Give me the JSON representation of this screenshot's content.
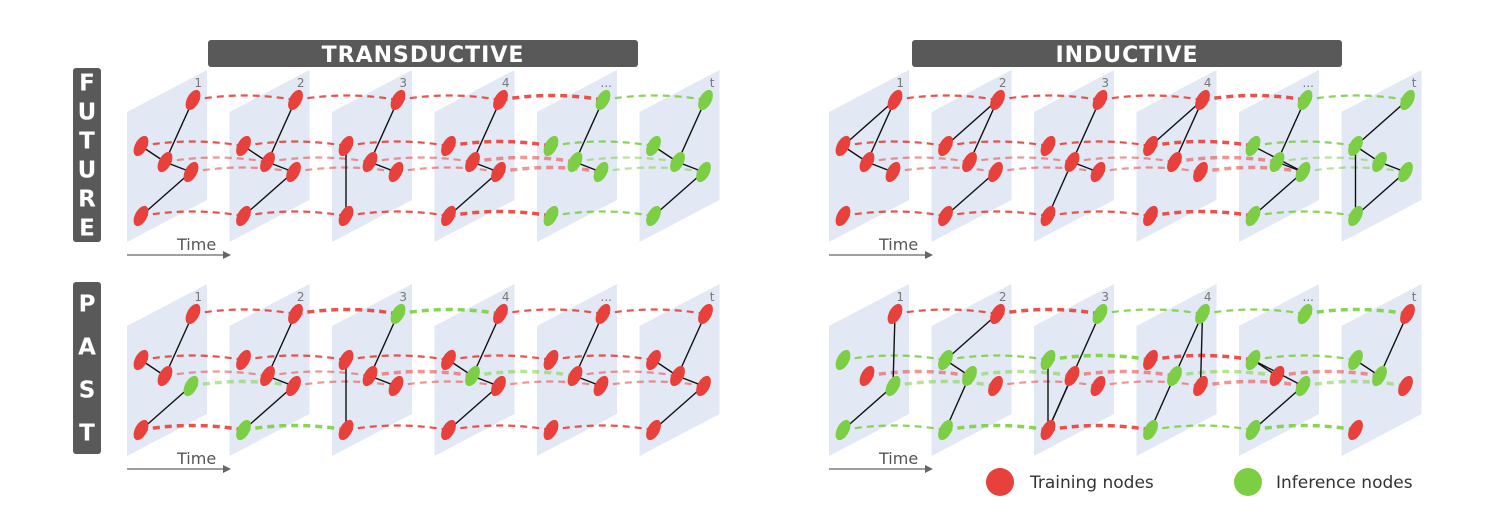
{
  "sections": [
    {
      "id": "transductive",
      "title": "TRANSDUCTIVE"
    },
    {
      "id": "inductive",
      "title": "INDUCTIVE"
    }
  ],
  "rows": [
    {
      "id": "future",
      "label": "FUTURE"
    },
    {
      "id": "past",
      "label": "PAST"
    }
  ],
  "frame_labels": [
    "1",
    "2",
    "3",
    "4",
    "...",
    "t"
  ],
  "time_label": "Time",
  "legend": {
    "training": {
      "label": "Training nodes",
      "color": "#e8403a"
    },
    "inference": {
      "label": "Inference nodes",
      "color": "#7ccf44"
    }
  },
  "colors": {
    "banner": "#595959",
    "plane": "#dfe6f3",
    "edge": "#111111",
    "axis": "#666666"
  },
  "panels": [
    {
      "section": "transductive",
      "row": "future",
      "frames": [
        {
          "nodes": [
            "r",
            "r",
            "r",
            "r",
            "r"
          ],
          "edges": [
            [
              0,
              2
            ],
            [
              1,
              2
            ],
            [
              2,
              3
            ],
            [
              3,
              4
            ]
          ]
        },
        {
          "nodes": [
            "r",
            "r",
            "r",
            "r",
            "r"
          ],
          "edges": [
            [
              0,
              2
            ],
            [
              2,
              3
            ],
            [
              3,
              4
            ],
            [
              1,
              2
            ]
          ]
        },
        {
          "nodes": [
            "r",
            "r",
            "r",
            "r",
            "r"
          ],
          "edges": [
            [
              0,
              2
            ],
            [
              1,
              4
            ],
            [
              2,
              3
            ]
          ]
        },
        {
          "nodes": [
            "r",
            "r",
            "r",
            "r",
            "r"
          ],
          "edges": [
            [
              0,
              2
            ],
            [
              2,
              3
            ],
            [
              3,
              4
            ]
          ]
        },
        {
          "nodes": [
            "g",
            "g",
            "g",
            "g",
            "g"
          ],
          "edges": [
            [
              0,
              2
            ],
            [
              2,
              3
            ]
          ]
        },
        {
          "nodes": [
            "g",
            "g",
            "g",
            "g",
            "g"
          ],
          "edges": [
            [
              0,
              2
            ],
            [
              2,
              3
            ],
            [
              3,
              4
            ],
            [
              1,
              2
            ]
          ]
        }
      ]
    },
    {
      "section": "transductive",
      "row": "past",
      "frames": [
        {
          "nodes": [
            "r",
            "r",
            "r",
            "g",
            "r"
          ],
          "edges": [
            [
              0,
              2
            ],
            [
              1,
              2
            ],
            [
              3,
              4
            ]
          ]
        },
        {
          "nodes": [
            "r",
            "r",
            "r",
            "r",
            "g"
          ],
          "edges": [
            [
              0,
              2
            ],
            [
              2,
              3
            ],
            [
              3,
              4
            ]
          ]
        },
        {
          "nodes": [
            "g",
            "r",
            "r",
            "r",
            "r"
          ],
          "edges": [
            [
              0,
              2
            ],
            [
              1,
              4
            ],
            [
              2,
              3
            ]
          ]
        },
        {
          "nodes": [
            "r",
            "r",
            "g",
            "r",
            "r"
          ],
          "edges": [
            [
              0,
              2
            ],
            [
              2,
              3
            ],
            [
              3,
              4
            ],
            [
              1,
              2
            ]
          ]
        },
        {
          "nodes": [
            "r",
            "r",
            "r",
            "r",
            "r"
          ],
          "edges": [
            [
              0,
              2
            ],
            [
              2,
              3
            ]
          ]
        },
        {
          "nodes": [
            "r",
            "r",
            "r",
            "r",
            "r"
          ],
          "edges": [
            [
              0,
              2
            ],
            [
              1,
              2
            ],
            [
              2,
              3
            ],
            [
              3,
              4
            ]
          ]
        }
      ]
    },
    {
      "section": "inductive",
      "row": "future",
      "frames": [
        {
          "nodes": [
            "r",
            "r",
            "r",
            "r",
            "r"
          ],
          "edges": [
            [
              0,
              1
            ],
            [
              0,
              2
            ],
            [
              1,
              2
            ],
            [
              2,
              3
            ]
          ]
        },
        {
          "nodes": [
            "r",
            "r",
            "r",
            "r",
            "r"
          ],
          "edges": [
            [
              0,
              1
            ],
            [
              0,
              2
            ],
            [
              3,
              4
            ]
          ]
        },
        {
          "nodes": [
            "r",
            "r",
            "r",
            "r",
            "r"
          ],
          "edges": [
            [
              0,
              2
            ],
            [
              2,
              4
            ],
            [
              2,
              3
            ]
          ]
        },
        {
          "nodes": [
            "r",
            "r",
            "r",
            "r",
            "r"
          ],
          "edges": [
            [
              0,
              1
            ],
            [
              0,
              2
            ]
          ]
        },
        {
          "nodes": [
            "g",
            "g",
            "g",
            "g",
            "g"
          ],
          "edges": [
            [
              0,
              2
            ],
            [
              1,
              3
            ],
            [
              2,
              3
            ],
            [
              3,
              4
            ]
          ]
        },
        {
          "nodes": [
            "g",
            "g",
            "g",
            "g",
            "g"
          ],
          "edges": [
            [
              0,
              1
            ],
            [
              1,
              2
            ],
            [
              1,
              4
            ],
            [
              2,
              3
            ],
            [
              3,
              4
            ]
          ]
        }
      ]
    },
    {
      "section": "inductive",
      "row": "past",
      "frames": [
        {
          "nodes": [
            "r",
            "g",
            "r",
            "g",
            "g"
          ],
          "edges": [
            [
              0,
              3
            ],
            [
              3,
              4
            ]
          ]
        },
        {
          "nodes": [
            "r",
            "g",
            "g",
            "r",
            "g"
          ],
          "edges": [
            [
              0,
              1
            ],
            [
              1,
              2
            ],
            [
              2,
              4
            ]
          ]
        },
        {
          "nodes": [
            "g",
            "g",
            "r",
            "r",
            "r"
          ],
          "edges": [
            [
              0,
              4
            ],
            [
              1,
              4
            ],
            [
              2,
              4
            ]
          ]
        },
        {
          "nodes": [
            "g",
            "r",
            "g",
            "r",
            "g"
          ],
          "edges": [
            [
              0,
              2
            ],
            [
              0,
              3
            ],
            [
              2,
              4
            ]
          ]
        },
        {
          "nodes": [
            "g",
            "g",
            "r",
            "g",
            "g"
          ],
          "edges": [
            [
              1,
              3
            ],
            [
              3,
              4
            ],
            [
              1,
              2
            ]
          ]
        },
        {
          "nodes": [
            "r",
            "g",
            "g",
            "r",
            "r"
          ],
          "edges": [
            [
              0,
              2
            ],
            [
              1,
              2
            ]
          ]
        }
      ]
    }
  ]
}
